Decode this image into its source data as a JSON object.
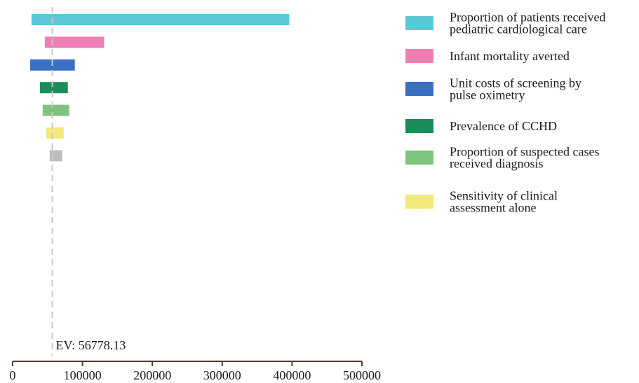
{
  "chart_data": {
    "type": "bar",
    "subtype": "tornado",
    "orientation": "horizontal",
    "xlim": [
      0,
      500000
    ],
    "x_ticks": [
      0,
      100000,
      200000,
      300000,
      400000,
      500000
    ],
    "x_tick_labels": [
      "0",
      "100000",
      "200000",
      "300000",
      "400000",
      "500000"
    ],
    "expected_value": 56778.13,
    "ev_label": "EV: 56778.13",
    "grid": false,
    "legend_position": "right",
    "bars": [
      {
        "name": "Proportion of patients received pediatric cardiological care",
        "low": 27000,
        "high": 396000,
        "color": "#5bc8d8"
      },
      {
        "name": "Infant mortality averted",
        "low": 46000,
        "high": 131000,
        "color": "#ee7fb5"
      },
      {
        "name": "Unit costs of screening by pulse oximetry",
        "low": 25000,
        "high": 89000,
        "color": "#3a6fc4"
      },
      {
        "name": "Prevalence of CCHD",
        "low": 39000,
        "high": 79000,
        "color": "#1a8e5a"
      },
      {
        "name": "Proportion of suspected cases received diagnosis",
        "low": 43000,
        "high": 81000,
        "color": "#7ec47c"
      },
      {
        "name": "Sensitivity of clinical assessment alone",
        "low": 48000,
        "high": 73000,
        "color": "#f2ea78"
      },
      {
        "name": "",
        "low": 53000,
        "high": 71000,
        "color": "#bdbdbd"
      }
    ],
    "legend": [
      {
        "lines": [
          "Proportion of patients received",
          "pediatric cardiological care"
        ],
        "color": "#5bc8d8"
      },
      {
        "lines": [
          "Infant mortality averted"
        ],
        "color": "#ee7fb5"
      },
      {
        "lines": [
          "Unit costs of screening by",
          "pulse oximetry"
        ],
        "color": "#3a6fc4"
      },
      {
        "lines": [
          "Prevalence of CCHD"
        ],
        "color": "#1a8e5a"
      },
      {
        "lines": [
          "Proportion of suspected cases",
          "received diagnosis"
        ],
        "color": "#7ec47c"
      },
      {
        "lines": [
          "Sensitivity of clinical",
          "assessment alone"
        ],
        "color": "#f2ea78"
      }
    ]
  }
}
